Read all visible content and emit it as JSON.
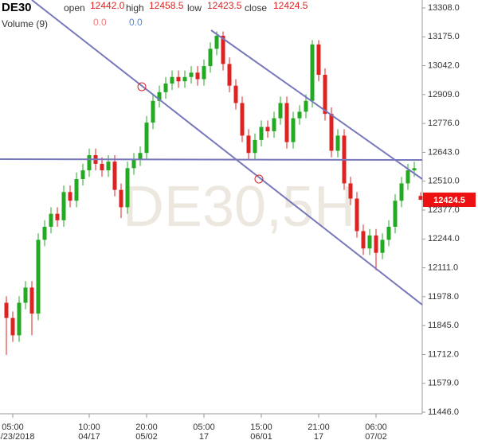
{
  "chart_data": {
    "type": "candlestick",
    "symbol": "DE30",
    "watermark": "DE30,5H",
    "header": {
      "open_label": "open",
      "open": "12442.0",
      "high_label": "high",
      "high": "12458.5",
      "low_label": "low",
      "low": "12423.5",
      "close_label": "close",
      "close": "12424.5"
    },
    "volume": {
      "label": "Volume (9)",
      "value_a": "0.0",
      "value_b": "0.0"
    },
    "last_price_label": "12424.5",
    "up_color": "#22aa22",
    "down_color": "#dd2222",
    "ylim": [
      11446,
      13308
    ],
    "yticks": [
      {
        "value": 11446,
        "label": "11446.0"
      },
      {
        "value": 11579,
        "label": "11579.0"
      },
      {
        "value": 11712,
        "label": "11712.0"
      },
      {
        "value": 11845,
        "label": "11845.0"
      },
      {
        "value": 11978,
        "label": "11978.0"
      },
      {
        "value": 12111,
        "label": "12111.0"
      },
      {
        "value": 12244,
        "label": "12244.0"
      },
      {
        "value": 12377,
        "label": "12377.0"
      },
      {
        "value": 12510,
        "label": "12510.0"
      },
      {
        "value": 12643,
        "label": "12643.0"
      },
      {
        "value": 12776,
        "label": "12776.0"
      },
      {
        "value": 12909,
        "label": "12909.0"
      },
      {
        "value": 13042,
        "label": "13042.0"
      },
      {
        "value": 13175,
        "label": "13175.0"
      },
      {
        "value": 13308,
        "label": "13308.0"
      }
    ],
    "xticks": [
      {
        "index": 1,
        "label": "05:00",
        "sublabel": "03/23/2018"
      },
      {
        "index": 13,
        "label": "10:00",
        "sublabel": "04/17"
      },
      {
        "index": 22,
        "label": "20:00",
        "sublabel": "05/02"
      },
      {
        "index": 31,
        "label": "05:00",
        "sublabel": "17"
      },
      {
        "index": 40,
        "label": "15:00",
        "sublabel": "06/01"
      },
      {
        "index": 49,
        "label": "21:00",
        "sublabel": "17"
      },
      {
        "index": 58,
        "label": "06:00",
        "sublabel": "07/02"
      }
    ],
    "open": [
      11950,
      11880,
      11800,
      11950,
      12020,
      11900,
      12240,
      12300,
      12360,
      12330,
      12460,
      12420,
      12520,
      12560,
      12630,
      12590,
      12560,
      12600,
      12470,
      12390,
      12570,
      12610,
      12640,
      12780,
      12880,
      12920,
      12960,
      12990,
      12970,
      12990,
      13010,
      12980,
      13040,
      13120,
      13180,
      13050,
      12950,
      12870,
      12720,
      12640,
      12700,
      12760,
      12740,
      12800,
      12870,
      12690,
      12800,
      12830,
      12880,
      13140,
      13000,
      12820,
      12650,
      12720,
      12500,
      12430,
      12280,
      12200,
      12260,
      12180,
      12240,
      12300,
      12420,
      12500,
      12560,
      12442
    ],
    "high": [
      11980,
      11910,
      11980,
      12050,
      12050,
      12270,
      12330,
      12390,
      12390,
      12490,
      12490,
      12550,
      12590,
      12660,
      12660,
      12620,
      12630,
      12630,
      12500,
      12600,
      12640,
      12670,
      12810,
      12910,
      12950,
      12990,
      13020,
      13020,
      13020,
      13040,
      13040,
      13070,
      13150,
      13200,
      13200,
      13080,
      12980,
      12900,
      12750,
      12730,
      12790,
      12790,
      12830,
      12900,
      12900,
      12830,
      12860,
      12910,
      13160,
      13160,
      13030,
      12850,
      12750,
      12750,
      12530,
      12460,
      12310,
      12290,
      12290,
      12270,
      12330,
      12450,
      12530,
      12590,
      12600,
      12458.5
    ],
    "low": [
      11710,
      11770,
      11770,
      11920,
      11800,
      11870,
      12210,
      12270,
      12300,
      12300,
      12390,
      12390,
      12490,
      12530,
      12560,
      12530,
      12530,
      12440,
      12340,
      12360,
      12540,
      12580,
      12610,
      12750,
      12850,
      12890,
      12930,
      12940,
      12940,
      12960,
      12950,
      12950,
      13010,
      13090,
      13020,
      12920,
      12840,
      12690,
      12610,
      12610,
      12670,
      12710,
      12710,
      12770,
      12660,
      12660,
      12770,
      12800,
      12850,
      12970,
      12790,
      12620,
      12620,
      12470,
      12400,
      12250,
      12170,
      12170,
      12100,
      12150,
      12210,
      12270,
      12390,
      12470,
      12530,
      12423.5
    ],
    "close": [
      11880,
      11800,
      11950,
      12020,
      11900,
      12240,
      12300,
      12360,
      12330,
      12460,
      12420,
      12520,
      12560,
      12630,
      12590,
      12560,
      12600,
      12470,
      12390,
      12570,
      12610,
      12640,
      12780,
      12880,
      12920,
      12960,
      12990,
      12970,
      12990,
      13010,
      12980,
      13040,
      13120,
      13180,
      13050,
      12950,
      12870,
      12720,
      12640,
      12700,
      12760,
      12740,
      12800,
      12870,
      12690,
      12800,
      12830,
      12880,
      13140,
      13000,
      12820,
      12650,
      12720,
      12500,
      12430,
      12280,
      12200,
      12260,
      12180,
      12240,
      12300,
      12420,
      12500,
      12560,
      12570,
      12424.5
    ]
  }
}
